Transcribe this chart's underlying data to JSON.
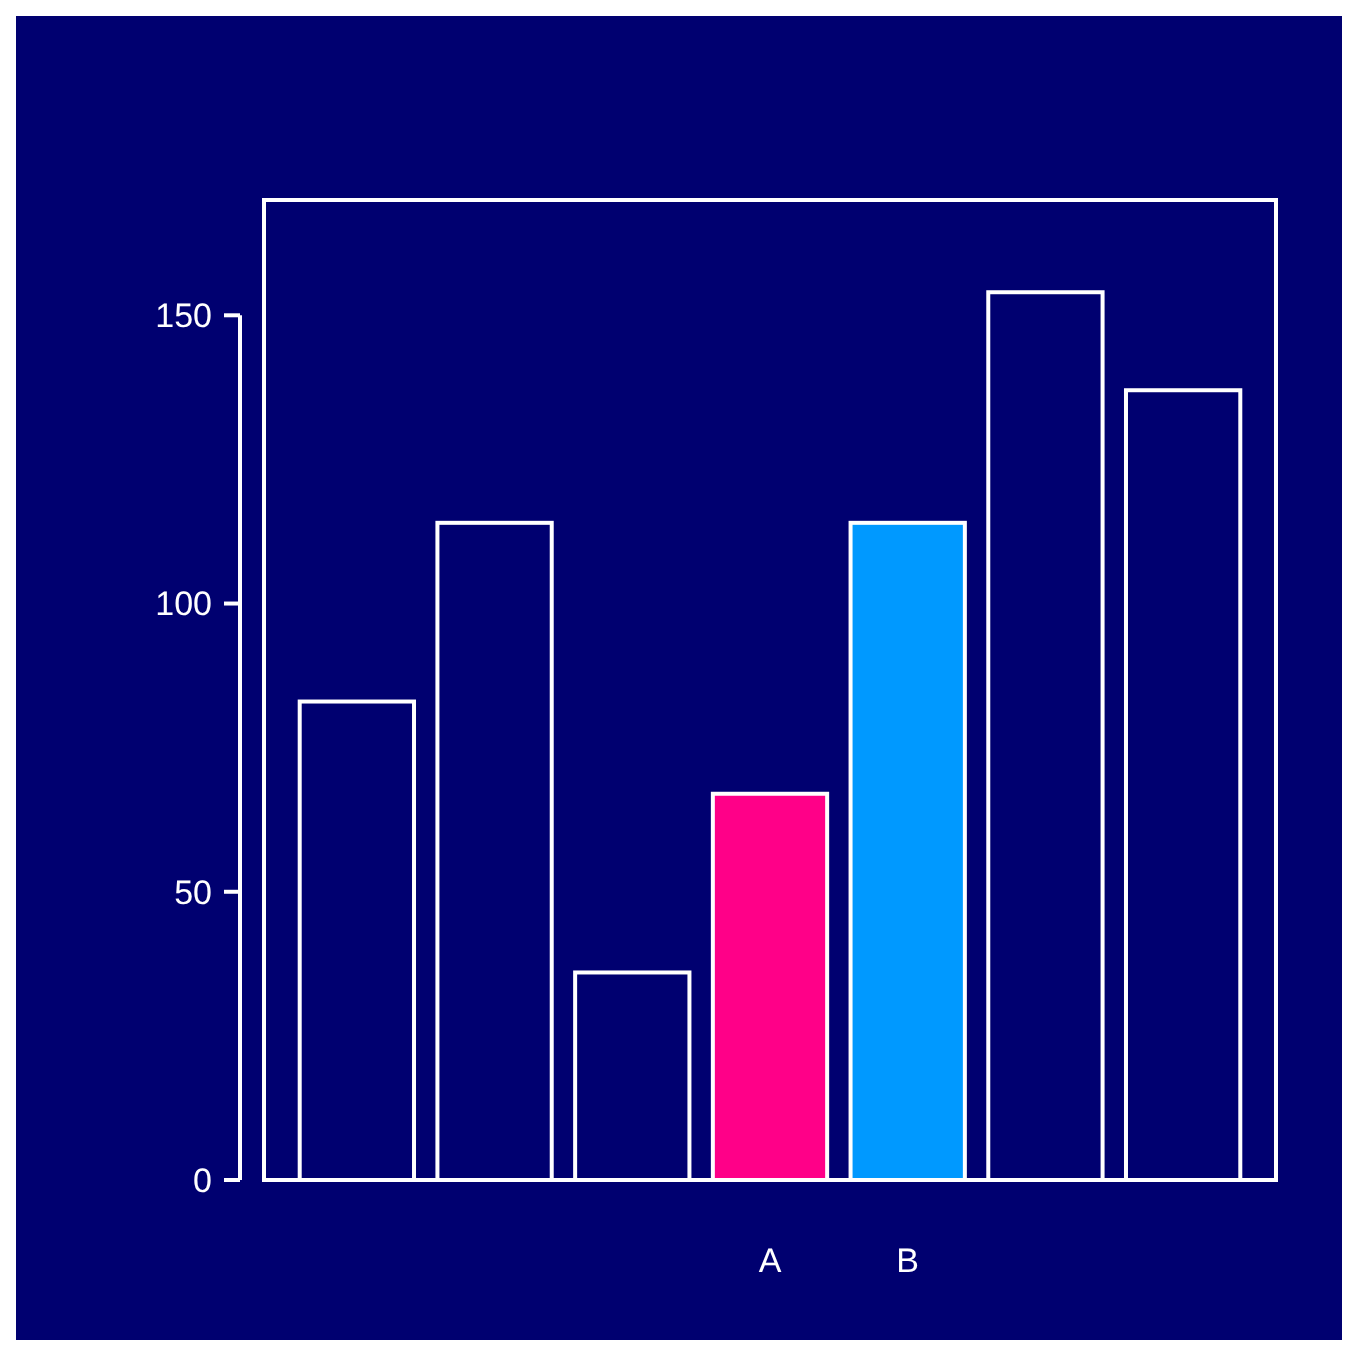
{
  "chart_data": {
    "type": "bar",
    "categories": [
      null,
      null,
      null,
      "A",
      "B",
      null,
      null
    ],
    "values": [
      83,
      114,
      36,
      67,
      114,
      154,
      137
    ],
    "colors": [
      "#000070",
      "#000070",
      "#000070",
      "#ff0088",
      "#0099ff",
      "#000070",
      "#000070"
    ],
    "ylim": [
      0,
      170
    ],
    "yticks": [
      0,
      50,
      100,
      150
    ],
    "grid": false
  }
}
